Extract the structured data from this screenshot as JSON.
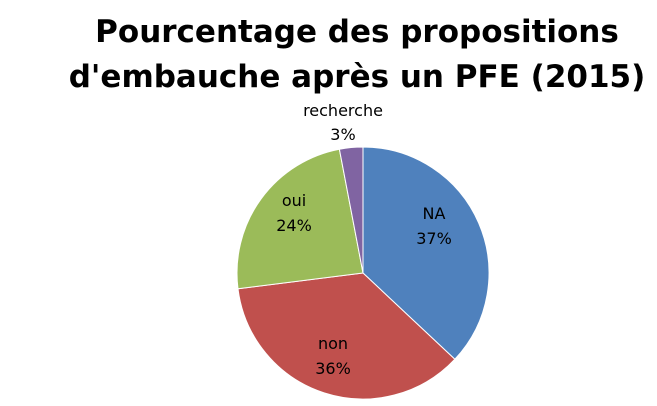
{
  "chart_data": {
    "type": "pie",
    "title_lines": [
      "Pourcentage des propositions",
      "d'embauche après un PFE (2015)"
    ],
    "slices": [
      {
        "label": "NA",
        "value": 37,
        "display": "37%",
        "color": "#4F81BD"
      },
      {
        "label": "non",
        "value": 36,
        "display": "36%",
        "color": "#C0504D"
      },
      {
        "label": "oui",
        "value": 24,
        "display": "24%",
        "color": "#9BBB59"
      },
      {
        "label": "recherche",
        "value": 3,
        "display": "3%",
        "color": "#8064A2"
      }
    ],
    "start_angle_deg": 0,
    "direction": "clockwise",
    "legend": "none"
  }
}
